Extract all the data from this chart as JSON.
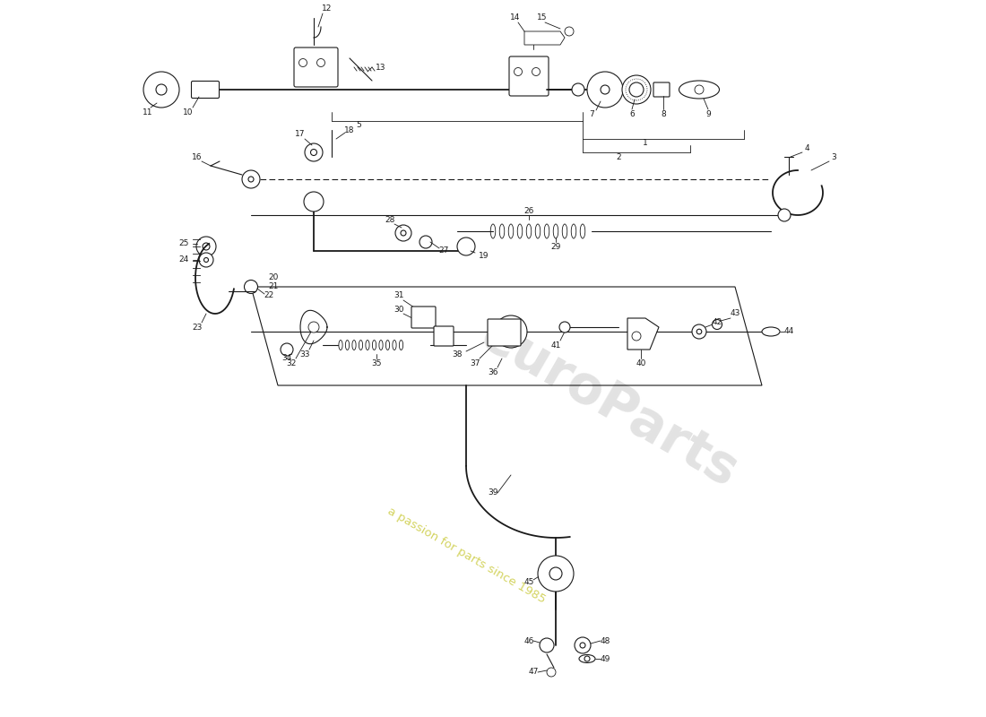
{
  "bg_color": "#ffffff",
  "line_color": "#1a1a1a",
  "watermark_text1": "euroParts",
  "watermark_text2": "a passion for parts since 1985",
  "watermark_color1": "#c0c0c0",
  "watermark_color2": "#cccc44",
  "fig_width": 11.0,
  "fig_height": 8.0,
  "dpi": 100,
  "xlim": [
    0,
    110
  ],
  "ylim": [
    0,
    80
  ]
}
